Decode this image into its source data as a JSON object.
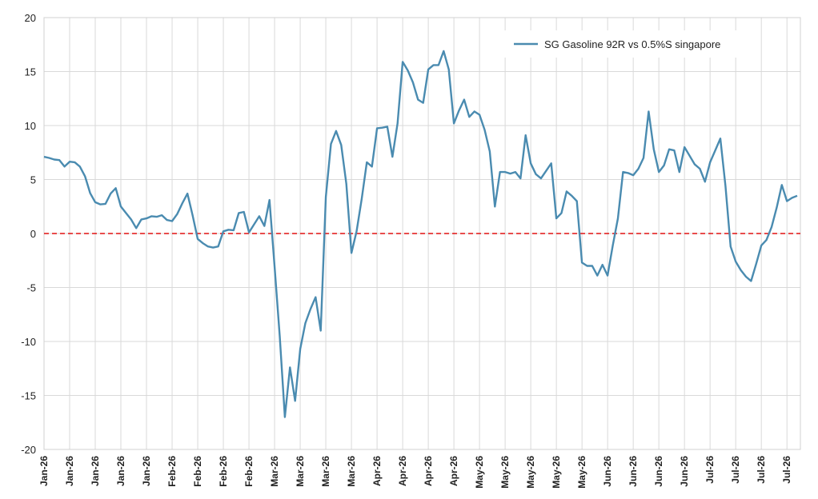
{
  "chart_data": {
    "type": "line",
    "categories": [
      "Jan-26",
      null,
      null,
      null,
      null,
      "Jan-26",
      null,
      null,
      null,
      null,
      "Jan-26",
      null,
      null,
      null,
      null,
      "Jan-26",
      null,
      null,
      null,
      null,
      "Jan-26",
      null,
      null,
      null,
      null,
      "Feb-26",
      null,
      null,
      null,
      null,
      "Feb-26",
      null,
      null,
      null,
      null,
      "Feb-26",
      null,
      null,
      null,
      null,
      "Feb-26",
      null,
      null,
      null,
      null,
      "Mar-26",
      null,
      null,
      null,
      null,
      "Mar-26",
      null,
      null,
      null,
      null,
      "Mar-26",
      null,
      null,
      null,
      null,
      "Mar-26",
      null,
      null,
      null,
      null,
      "Apr-26",
      null,
      null,
      null,
      null,
      "Apr-26",
      null,
      null,
      null,
      null,
      "Apr-26",
      null,
      null,
      null,
      null,
      "Apr-26",
      null,
      null,
      null,
      null,
      "May-26",
      null,
      null,
      null,
      null,
      "May-26",
      null,
      null,
      null,
      null,
      "May-26",
      null,
      null,
      null,
      null,
      "May-26",
      null,
      null,
      null,
      null,
      "May-26",
      null,
      null,
      null,
      null,
      "Jun-26",
      null,
      null,
      null,
      null,
      "Jun-26",
      null,
      null,
      null,
      null,
      "Jun-26",
      null,
      null,
      null,
      null,
      "Jun-26",
      null,
      null,
      null,
      null,
      "Jul-26",
      null,
      null,
      null,
      null,
      "Jul-26",
      null,
      null,
      null,
      null,
      "Jul-26",
      null,
      null,
      null,
      null,
      "Jul-26",
      null,
      null
    ],
    "series": [
      {
        "name": "SG Gasoline 92R vs 0.5%S singapore",
        "color": "#4a8bb0",
        "values": [
          7.1,
          7.0,
          6.85,
          6.8,
          6.2,
          6.65,
          6.6,
          6.2,
          5.3,
          3.75,
          2.9,
          2.7,
          2.75,
          3.7,
          4.2,
          2.5,
          1.9,
          1.3,
          0.5,
          1.3,
          1.4,
          1.6,
          1.55,
          1.7,
          1.25,
          1.15,
          1.8,
          2.8,
          3.7,
          1.7,
          -0.5,
          -0.9,
          -1.2,
          -1.3,
          -1.2,
          0.2,
          0.35,
          0.3,
          1.9,
          2.0,
          0.1,
          0.85,
          1.6,
          0.7,
          3.1,
          -3.1,
          -9.5,
          -17.0,
          -12.4,
          -15.5,
          -10.7,
          -8.3,
          -7.0,
          -5.9,
          -9.0,
          3.4,
          8.3,
          9.5,
          8.2,
          4.6,
          -1.8,
          0.2,
          3.2,
          6.6,
          6.2,
          9.75,
          9.8,
          9.9,
          7.1,
          10.2,
          15.9,
          15.1,
          14.0,
          12.4,
          12.1,
          15.2,
          15.6,
          15.6,
          16.9,
          15.2,
          10.2,
          11.4,
          12.4,
          10.8,
          11.3,
          11.0,
          9.6,
          7.6,
          2.5,
          5.7,
          5.7,
          5.55,
          5.7,
          5.1,
          9.1,
          6.5,
          5.5,
          5.1,
          5.8,
          6.5,
          1.4,
          1.9,
          3.9,
          3.5,
          3.0,
          -2.7,
          -3.0,
          -3.0,
          -3.9,
          -2.9,
          -3.9,
          -1.1,
          1.4,
          5.7,
          5.6,
          5.4,
          6.0,
          7.0,
          11.3,
          7.8,
          5.7,
          6.3,
          7.8,
          7.7,
          5.7,
          8.0,
          7.2,
          6.4,
          6.0,
          4.8,
          6.6,
          7.7,
          8.8,
          4.4,
          -1.2,
          -2.6,
          -3.4,
          -4.0,
          -4.4,
          -2.8,
          -1.1,
          -0.6,
          0.6,
          2.4,
          4.5,
          3.0,
          3.3,
          3.5
        ]
      }
    ],
    "ylim": [
      -20,
      20
    ],
    "yticks": [
      -20,
      -15,
      -10,
      -5,
      0,
      5,
      10,
      15,
      20
    ],
    "grid": true,
    "legend": "top-right",
    "reference_line": {
      "value": 0,
      "color": "#e01010"
    }
  }
}
